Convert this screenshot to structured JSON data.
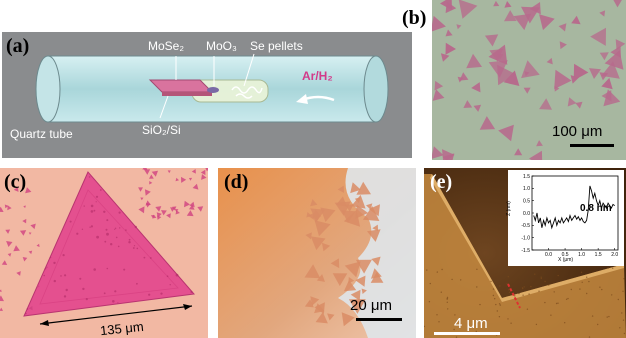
{
  "figure": {
    "panels": [
      {
        "label": "(a)"
      },
      {
        "label": "(b)"
      },
      {
        "label": "(c)"
      },
      {
        "label": "(d)"
      },
      {
        "label": "(e)"
      }
    ]
  },
  "panel_a": {
    "labels": {
      "mose2": "MoSe₂",
      "moo3": "MoO₃",
      "se_pellets": "Se pellets",
      "gas": "Ar/H₂",
      "tube": "Quartz tube",
      "substrate": "SiO₂/Si"
    },
    "colors": {
      "background": "#8a8c8e",
      "tube": "#bfe3e6",
      "substrate": "#d9739e",
      "arrow": "#ffffff",
      "gas_text": "#d23b8a"
    }
  },
  "panel_b": {
    "scale_bar": "100 μm",
    "colors": {
      "background": "#a7b7a0",
      "flake": "#b76a8c"
    }
  },
  "panel_c": {
    "dimension": "135 μm",
    "colors": {
      "background": "#f2b8a3",
      "flake": "#e4508f"
    }
  },
  "panel_d": {
    "scale_bar": "20 μm",
    "colors": {
      "background": "#d9a07a",
      "gap": "#dfe6ea"
    }
  },
  "panel_e": {
    "scale_bar": "4 μm",
    "inset": {
      "thickness_label": "0.8 nm",
      "chart_data": {
        "type": "line",
        "xlabel": "X (μm)",
        "ylabel": "Z (nm)",
        "xlim": [
          -0.5,
          2.1
        ],
        "ylim": [
          -1.5,
          1.5
        ],
        "x_ticks": [
          0.0,
          0.5,
          1.0,
          1.5,
          2.0
        ],
        "y_ticks": [
          -1.5,
          -1.0,
          -0.5,
          0.0,
          0.5,
          1.0,
          1.5
        ],
        "x_tick_labels": [
          "0.0",
          "0.5",
          "1.0",
          "1.5",
          "2.0"
        ],
        "y_tick_labels": [
          "-1.5",
          "-1.0",
          "-0.5",
          "0.0",
          "0.5",
          "1.0",
          "1.5"
        ],
        "series": [
          {
            "x": [
              -0.45,
              -0.4,
              -0.35,
              -0.3,
              -0.25,
              -0.2,
              -0.15,
              -0.1,
              -0.05,
              0.0,
              0.05,
              0.1,
              0.15,
              0.2,
              0.25,
              0.3,
              0.35,
              0.4,
              0.45,
              0.5,
              0.55,
              0.6,
              0.65,
              0.7,
              0.75,
              0.8,
              0.85,
              0.9,
              0.95,
              1.0,
              1.05,
              1.1,
              1.15,
              1.2,
              1.25,
              1.3,
              1.35,
              1.4,
              1.45,
              1.5,
              1.55,
              1.6,
              1.65,
              1.7,
              1.75,
              1.8,
              1.85,
              1.9,
              1.95,
              2.0
            ],
            "y": [
              -0.1,
              -0.3,
              0.0,
              -0.4,
              -0.2,
              -0.6,
              -0.3,
              -0.5,
              -0.2,
              -0.4,
              -0.3,
              -0.6,
              -0.4,
              -0.2,
              -0.5,
              -0.3,
              -0.4,
              -0.2,
              -0.4,
              -0.3,
              -0.2,
              -0.35,
              -0.1,
              -0.3,
              -0.2,
              -0.1,
              -0.25,
              -0.15,
              -0.3,
              -0.2,
              -0.35,
              -0.4,
              -0.3,
              0.1,
              1.1,
              0.9,
              0.6,
              0.8,
              0.5,
              0.3,
              0.5,
              0.2,
              0.4,
              0.3,
              0.2,
              0.4,
              0.3,
              0.2,
              0.35,
              0.3
            ]
          }
        ]
      }
    },
    "colors": {
      "background": "#5a3618",
      "flake": "#c58a3f",
      "marker": "#e03030"
    }
  }
}
